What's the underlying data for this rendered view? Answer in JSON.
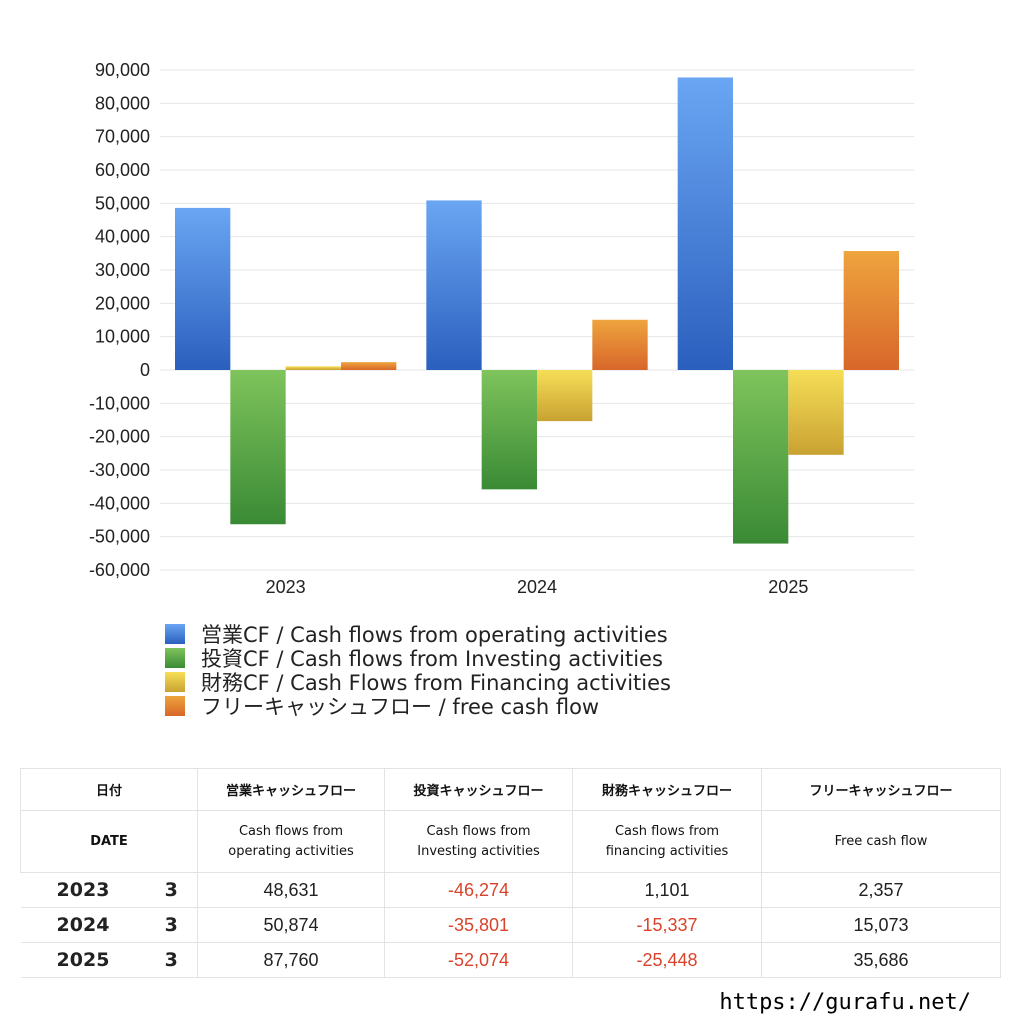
{
  "chart_data": {
    "type": "bar",
    "categories": [
      "2023",
      "2024",
      "2025"
    ],
    "ylim": [
      -60000,
      90000
    ],
    "y_ticks": [
      "90,000",
      "80,000",
      "70,000",
      "60,000",
      "50,000",
      "40,000",
      "30,000",
      "20,000",
      "10,000",
      "0",
      "-10,000",
      "-20,000",
      "-30,000",
      "-40,000",
      "-50,000",
      "-60,000"
    ],
    "series": [
      {
        "name": "営業CF / Cash flows from operating activities",
        "values": [
          48631,
          50874,
          87760
        ],
        "color": "#3f7ad9"
      },
      {
        "name": "投資CF / Cash flows from Investing activities",
        "values": [
          -46274,
          -35801,
          -52074
        ],
        "color": "#58a646"
      },
      {
        "name": "財務CF / Cash Flows from Financing activities",
        "values": [
          1101,
          -15337,
          -25448
        ],
        "color": "#e2c441"
      },
      {
        "name": "フリーキャッシュフロー / free cash flow",
        "values": [
          2357,
          15073,
          35686
        ],
        "color": "#e07e33"
      }
    ],
    "grid": true,
    "legend": "bottom"
  },
  "table": {
    "headers": [
      "日付",
      "営業キャッシュフロー",
      "投資キャッシュフロー",
      "財務キャッシュフロー",
      "フリーキャッシュフロー"
    ],
    "subheaders": [
      "DATE",
      [
        "Cash flows from",
        "operating activities"
      ],
      [
        "Cash flows from",
        "Investing activities"
      ],
      [
        "Cash flows from",
        "financing activities"
      ],
      "Free cash flow"
    ],
    "rows": [
      {
        "year": "2023",
        "month": "3",
        "values": [
          "48,631",
          "-46,274",
          "1,101",
          "2,357"
        ]
      },
      {
        "year": "2024",
        "month": "3",
        "values": [
          "50,874",
          "-35,801",
          "-15,337",
          "15,073"
        ]
      },
      {
        "year": "2025",
        "month": "3",
        "values": [
          "87,760",
          "-52,074",
          "-25,448",
          "35,686"
        ]
      }
    ]
  },
  "footer": {
    "url": "https://gurafu.net/"
  }
}
